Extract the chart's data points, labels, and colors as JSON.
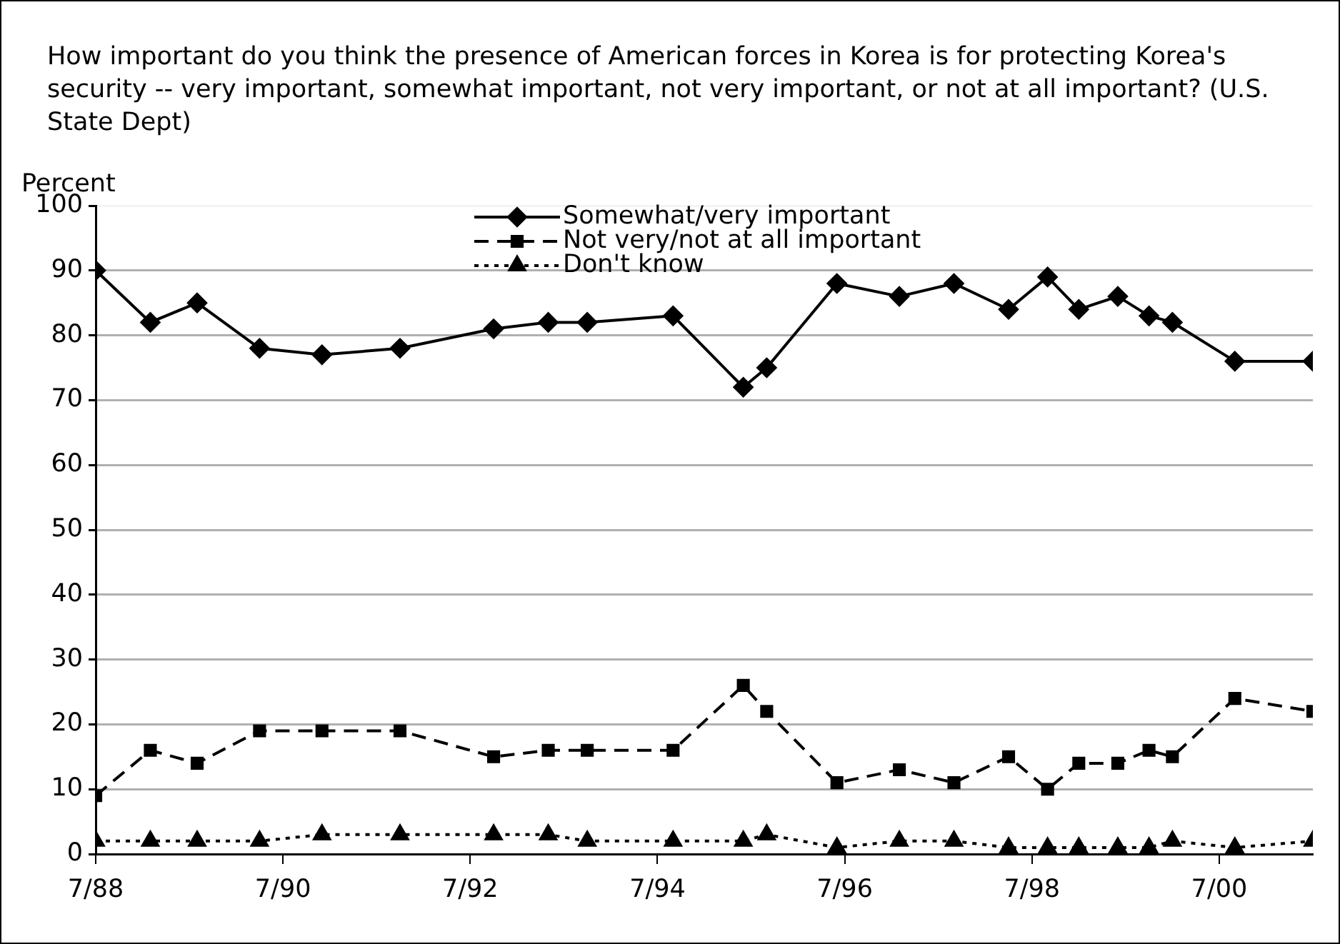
{
  "chart_data": {
    "type": "line",
    "title": "How important do you think the presence of American forces in Korea is for protecting Korea's security -- very important, somewhat important, not very important, or not at all important? (U.S. State Dept)",
    "ylabel": "Percent",
    "x": [
      "1988-07",
      "1989-02",
      "1989-08",
      "1990-04",
      "1990-12",
      "1991-10",
      "1992-10",
      "1993-05",
      "1993-10",
      "1994-09",
      "1995-06",
      "1995-09",
      "1996-06",
      "1997-02",
      "1997-09",
      "1998-04",
      "1998-09",
      "1999-01",
      "1999-06",
      "1999-10",
      "2000-01",
      "2000-09",
      "2001-07"
    ],
    "series": [
      {
        "name": "Somewhat/very important",
        "color": "#000000",
        "marker": "diamond",
        "line_style": "solid",
        "values": [
          90,
          82,
          85,
          78,
          77,
          78,
          81,
          82,
          82,
          83,
          72,
          75,
          88,
          86,
          88,
          84,
          89,
          84,
          86,
          83,
          82,
          76,
          76
        ]
      },
      {
        "name": "Not very/not at all important",
        "color": "#000000",
        "marker": "square",
        "line_style": "dashed",
        "values": [
          9,
          16,
          14,
          19,
          19,
          19,
          15,
          16,
          16,
          16,
          26,
          22,
          11,
          13,
          11,
          15,
          10,
          14,
          14,
          16,
          15,
          24,
          22
        ]
      },
      {
        "name": "Don't know",
        "color": "#000000",
        "marker": "triangle",
        "line_style": "dotted",
        "values": [
          2,
          2,
          2,
          2,
          3,
          3,
          3,
          3,
          2,
          2,
          2,
          3,
          1,
          2,
          2,
          1,
          1,
          1,
          1,
          1,
          2,
          1,
          2
        ]
      }
    ],
    "xlim": [
      "1988-07",
      "2001-07"
    ],
    "xticks": [
      {
        "value": "1988-07",
        "label": "7/88"
      },
      {
        "value": "1990-07",
        "label": "7/90"
      },
      {
        "value": "1992-07",
        "label": "7/92"
      },
      {
        "value": "1994-07",
        "label": "7/94"
      },
      {
        "value": "1996-07",
        "label": "7/96"
      },
      {
        "value": "1998-07",
        "label": "7/98"
      },
      {
        "value": "2000-07",
        "label": "7/00"
      }
    ],
    "ylim": [
      0,
      100
    ],
    "yticks": [
      0,
      10,
      20,
      30,
      40,
      50,
      60,
      70,
      80,
      90,
      100
    ],
    "grid": "y",
    "legend": "top"
  }
}
